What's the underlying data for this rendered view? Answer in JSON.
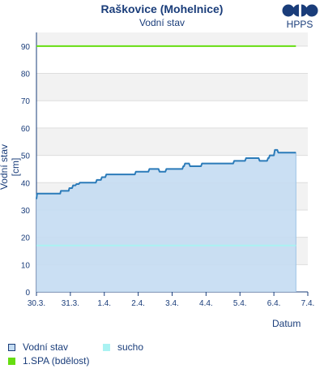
{
  "chart_data": {
    "type": "area",
    "title": "Raškovice (Mohelnice)",
    "subtitle": "Vodní stav",
    "xlabel": "Datum",
    "ylabel": "Vodní stav [cm]",
    "ylim": [
      0,
      95
    ],
    "yticks": [
      0,
      10,
      20,
      30,
      40,
      50,
      60,
      70,
      80,
      90
    ],
    "xticks": [
      "30.3.",
      "31.3.",
      "1.4.",
      "2.4.",
      "3.4.",
      "4.4.",
      "5.4.",
      "6.4.",
      "7.4."
    ],
    "xlim": [
      0,
      8
    ],
    "grid": true,
    "series": [
      {
        "name": "Vodní stav",
        "color": "#2b7bb9",
        "fill": "#c4dcf2",
        "x": [
          0,
          0.02,
          0.7,
          0.72,
          0.95,
          0.97,
          1.05,
          1.08,
          1.15,
          1.18,
          1.25,
          1.28,
          1.75,
          1.78,
          1.9,
          1.93,
          2.03,
          2.06,
          2.9,
          2.93,
          3.3,
          3.33,
          3.6,
          3.63,
          3.8,
          3.83,
          4.3,
          4.33,
          4.35,
          4.38,
          4.5,
          4.53,
          4.85,
          4.88,
          5.8,
          5.83,
          6.15,
          6.18,
          6.55,
          6.58,
          6.8,
          6.83,
          6.85,
          6.88,
          7.0,
          7.03,
          7.1,
          7.13,
          7.65
        ],
        "y": [
          34,
          36,
          36,
          37,
          37,
          38,
          38,
          39,
          39,
          39.5,
          39.5,
          40,
          40,
          41,
          41,
          42,
          42,
          43,
          43,
          44,
          44,
          45,
          45,
          44,
          44,
          45,
          45,
          46,
          46,
          47,
          47,
          46,
          46,
          47,
          47,
          48,
          48,
          49,
          49,
          48,
          48,
          49,
          49,
          50,
          50,
          52,
          52,
          51,
          51
        ]
      },
      {
        "name": "sucho",
        "color": "#aaf2f2",
        "value": 17
      },
      {
        "name": "1.SPA (bdělost)",
        "color": "#66dd11",
        "value": 90
      }
    ],
    "legend": "bottom"
  },
  "logo": {
    "text": "HPPS"
  },
  "legend_items": [
    {
      "label": "Vodní stav",
      "color": "#c4dcf2",
      "border": "#1a3d7a"
    },
    {
      "label": "sucho",
      "color": "#aaf2f2",
      "border": "#aaf2f2"
    },
    {
      "label": "1.SPA (bdělost)",
      "color": "#66dd11",
      "border": "#66dd11"
    }
  ]
}
